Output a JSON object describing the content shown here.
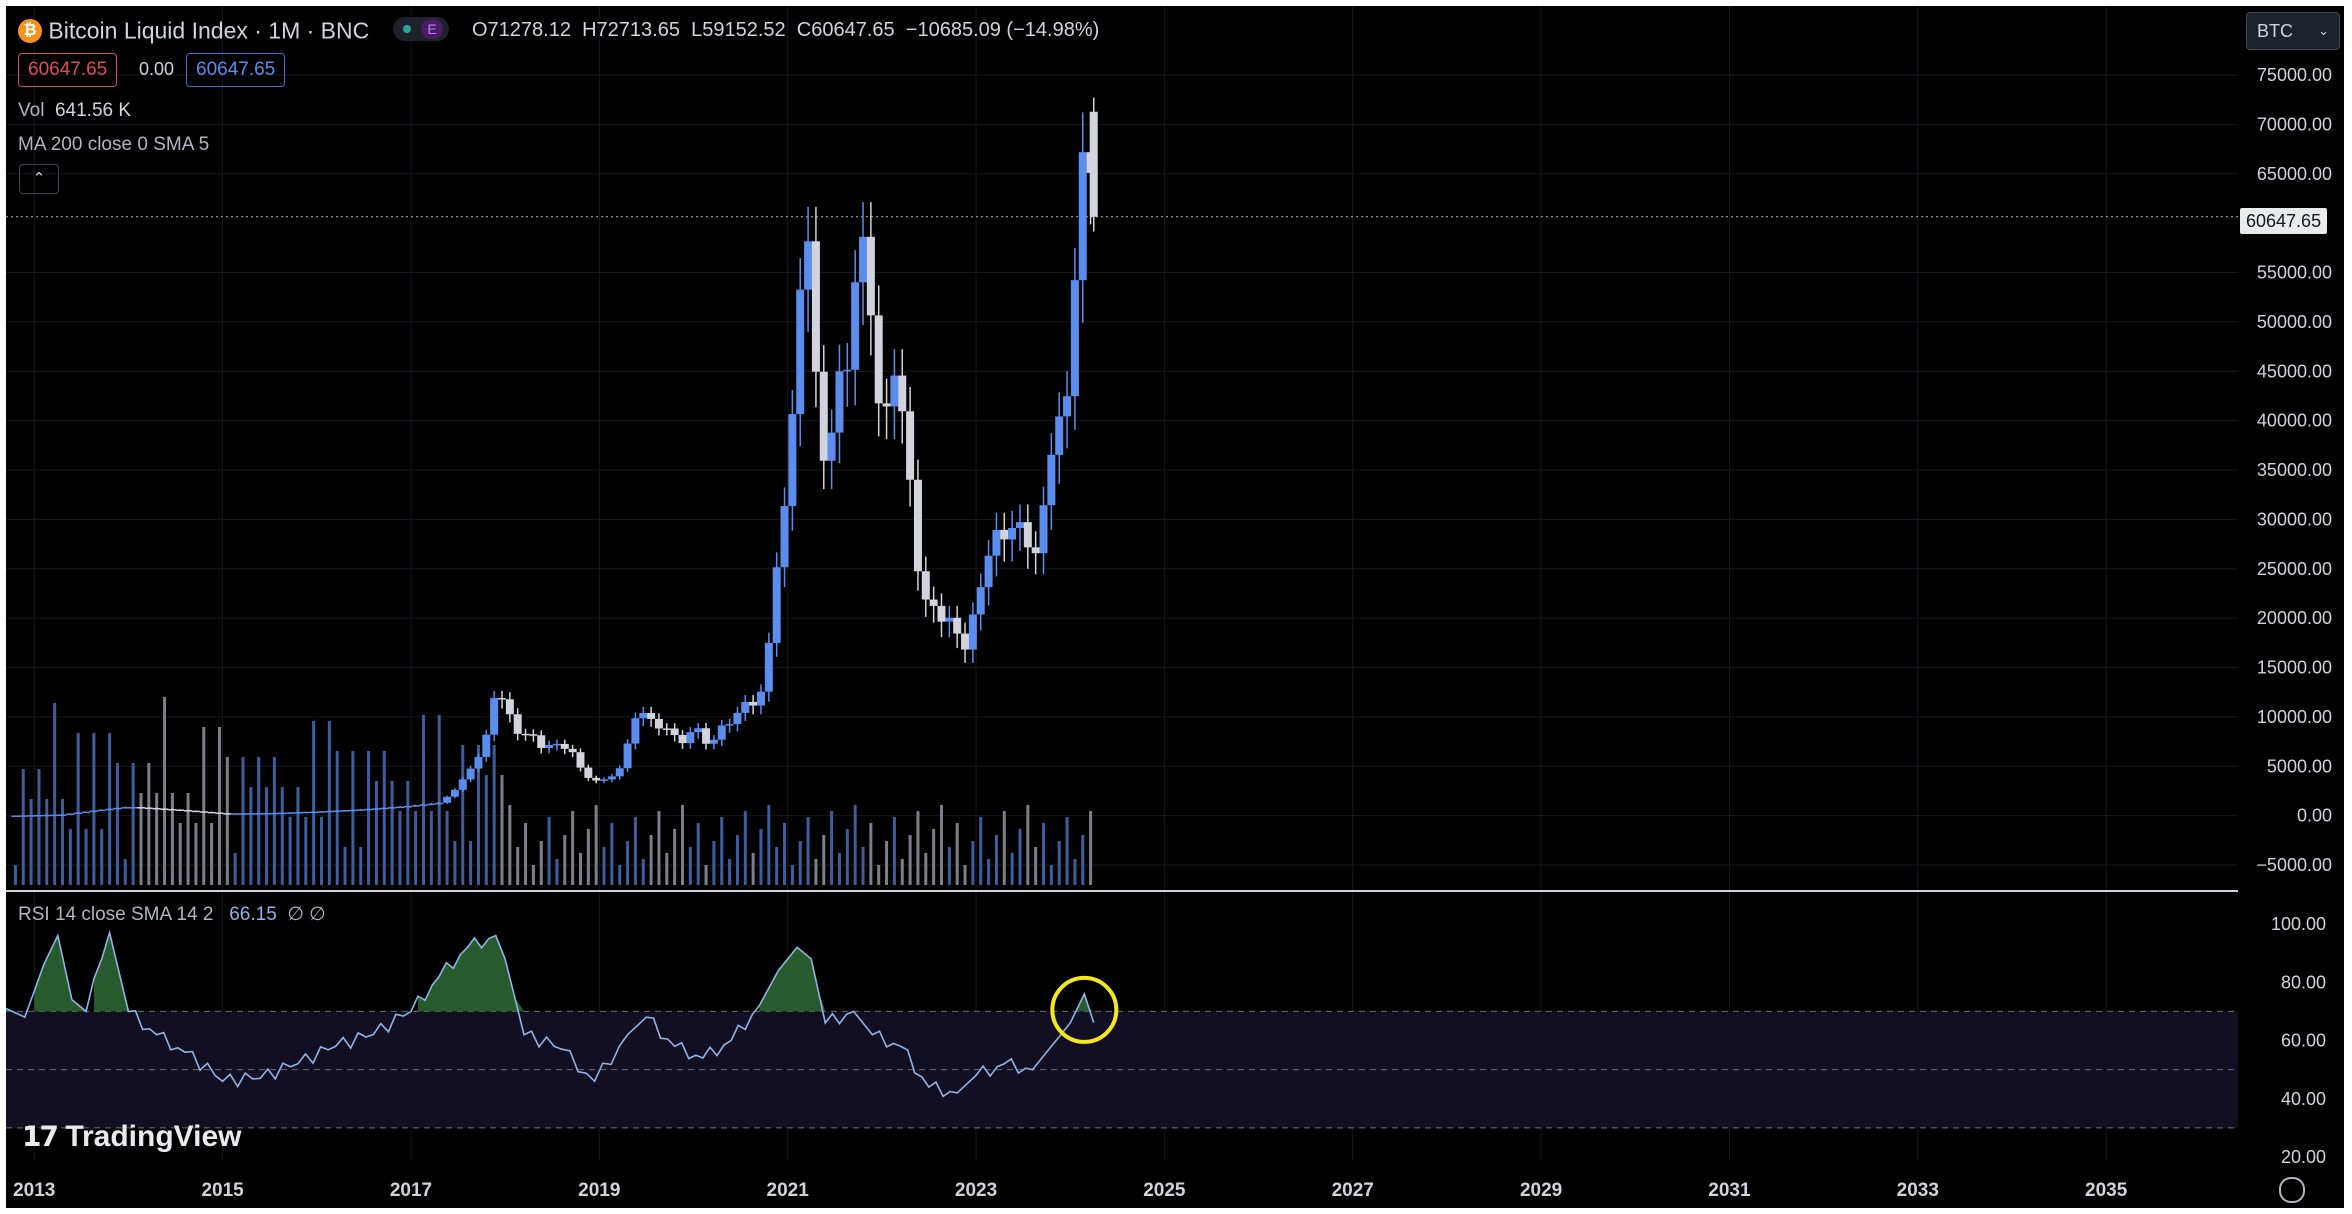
{
  "header": {
    "symbol_title": "Bitcoin Liquid Index · 1M · BNC",
    "badge_e": "E",
    "ohlc": {
      "open": "O71278.12",
      "high": "H72713.65",
      "low": "L59152.52",
      "close": "C60647.65",
      "change": "−10685.09 (−14.98%)"
    },
    "bid": "60647.65",
    "spread": "0.00",
    "ask": "60647.65",
    "vol_label": "Vol",
    "vol_value": "641.56 K",
    "ma_label": "MA 200 close 0 SMA 5",
    "rsi_label": "RSI 14 close SMA 14 2",
    "rsi_value": "66.15",
    "rsi_extra": "∅ ∅"
  },
  "currency_button": "BTC",
  "watermark": "TradingView",
  "last_price_label": "60647.65",
  "colors": {
    "background": "#000000",
    "up": "#5b8def",
    "down": "#d1d4dc",
    "rsi_line": "#8fb4e8",
    "overbought_fill": "#2e7d32",
    "highlight_circle": "#f5e71d",
    "bid_border": "#e04b55",
    "ask_border": "#3a6fd8"
  },
  "chart_data": [
    {
      "type": "candlestick",
      "title": "Bitcoin Liquid Index · 1M · BNC",
      "y_ticks": [
        "75000.00",
        "70000.00",
        "65000.00",
        "55000.00",
        "50000.00",
        "45000.00",
        "40000.00",
        "35000.00",
        "30000.00",
        "25000.00",
        "20000.00",
        "15000.00",
        "10000.00",
        "5000.00",
        "0.00",
        "−5000.00"
      ],
      "ylim": [
        -5000,
        75000
      ],
      "x_ticks": [
        "2013",
        "2015",
        "2017",
        "2019",
        "2021",
        "2023",
        "2025",
        "2027",
        "2029",
        "2031",
        "2033",
        "2035"
      ],
      "xlim": [
        2012.7,
        2036.4
      ],
      "last_price": 60647.65,
      "series_major": [
        {
          "t": 2012.8,
          "c": 12
        },
        {
          "t": 2013.3,
          "c": 120
        },
        {
          "t": 2013.8,
          "c": 700
        },
        {
          "t": 2014.0,
          "c": 900
        },
        {
          "t": 2014.5,
          "c": 600
        },
        {
          "t": 2015.0,
          "c": 230
        },
        {
          "t": 2015.5,
          "c": 260
        },
        {
          "t": 2016.0,
          "c": 420
        },
        {
          "t": 2016.5,
          "c": 650
        },
        {
          "t": 2017.0,
          "c": 1000
        },
        {
          "t": 2017.3,
          "c": 1300
        },
        {
          "t": 2017.45,
          "c": 2400
        },
        {
          "t": 2017.6,
          "c": 4300
        },
        {
          "t": 2017.75,
          "c": 6400
        },
        {
          "t": 2017.85,
          "c": 10000
        },
        {
          "t": 2017.92,
          "c": 14000
        },
        {
          "t": 2018.0,
          "c": 10200
        },
        {
          "t": 2018.08,
          "c": 10300
        },
        {
          "t": 2018.17,
          "c": 6900
        },
        {
          "t": 2018.25,
          "c": 9200
        },
        {
          "t": 2018.33,
          "c": 7500
        },
        {
          "t": 2018.42,
          "c": 6400
        },
        {
          "t": 2018.5,
          "c": 7700
        },
        {
          "t": 2018.58,
          "c": 7000
        },
        {
          "t": 2018.67,
          "c": 6600
        },
        {
          "t": 2018.75,
          "c": 6300
        },
        {
          "t": 2018.83,
          "c": 4000
        },
        {
          "t": 2018.92,
          "c": 3700
        },
        {
          "t": 2019.0,
          "c": 3450
        },
        {
          "t": 2019.08,
          "c": 3800
        },
        {
          "t": 2019.17,
          "c": 4100
        },
        {
          "t": 2019.25,
          "c": 5300
        },
        {
          "t": 2019.33,
          "c": 8500
        },
        {
          "t": 2019.42,
          "c": 10800
        },
        {
          "t": 2019.5,
          "c": 10100
        },
        {
          "t": 2019.58,
          "c": 9600
        },
        {
          "t": 2019.67,
          "c": 8300
        },
        {
          "t": 2019.75,
          "c": 9200
        },
        {
          "t": 2019.83,
          "c": 7550
        },
        {
          "t": 2019.92,
          "c": 7200
        },
        {
          "t": 2020.0,
          "c": 9350
        },
        {
          "t": 2020.08,
          "c": 8550
        },
        {
          "t": 2020.17,
          "c": 6400
        },
        {
          "t": 2020.25,
          "c": 8600
        },
        {
          "t": 2020.33,
          "c": 9450
        },
        {
          "t": 2020.42,
          "c": 9150
        },
        {
          "t": 2020.5,
          "c": 11300
        },
        {
          "t": 2020.58,
          "c": 11650
        },
        {
          "t": 2020.67,
          "c": 10800
        },
        {
          "t": 2020.75,
          "c": 13800
        },
        {
          "t": 2020.83,
          "c": 19700
        },
        {
          "t": 2020.92,
          "c": 28900
        },
        {
          "t": 2021.0,
          "c": 33100
        },
        {
          "t": 2021.08,
          "c": 45200
        },
        {
          "t": 2021.17,
          "c": 58800
        },
        {
          "t": 2021.25,
          "c": 57700
        },
        {
          "t": 2021.33,
          "c": 37300
        },
        {
          "t": 2021.42,
          "c": 35000
        },
        {
          "t": 2021.5,
          "c": 41500
        },
        {
          "t": 2021.58,
          "c": 47100
        },
        {
          "t": 2021.67,
          "c": 43800
        },
        {
          "t": 2021.75,
          "c": 61300
        },
        {
          "t": 2021.83,
          "c": 57000
        },
        {
          "t": 2021.92,
          "c": 46300
        },
        {
          "t": 2022.0,
          "c": 38500
        },
        {
          "t": 2022.08,
          "c": 43200
        },
        {
          "t": 2022.17,
          "c": 45500
        },
        {
          "t": 2022.25,
          "c": 37700
        },
        {
          "t": 2022.33,
          "c": 31800
        },
        {
          "t": 2022.42,
          "c": 19900
        },
        {
          "t": 2022.5,
          "c": 23300
        },
        {
          "t": 2022.58,
          "c": 20000
        },
        {
          "t": 2022.67,
          "c": 19400
        },
        {
          "t": 2022.75,
          "c": 20500
        },
        {
          "t": 2022.83,
          "c": 17200
        },
        {
          "t": 2022.92,
          "c": 16550
        },
        {
          "t": 2023.0,
          "c": 23100
        },
        {
          "t": 2023.08,
          "c": 23150
        },
        {
          "t": 2023.17,
          "c": 28500
        },
        {
          "t": 2023.25,
          "c": 29250
        },
        {
          "t": 2023.33,
          "c": 27200
        },
        {
          "t": 2023.42,
          "c": 30450
        },
        {
          "t": 2023.5,
          "c": 29200
        },
        {
          "t": 2023.58,
          "c": 25950
        },
        {
          "t": 2023.67,
          "c": 27000
        },
        {
          "t": 2023.75,
          "c": 34600
        },
        {
          "t": 2023.83,
          "c": 37700
        },
        {
          "t": 2023.92,
          "c": 42300
        },
        {
          "t": 2024.0,
          "c": 42600
        },
        {
          "t": 2024.08,
          "c": 61200
        },
        {
          "t": 2024.17,
          "c": 71300
        },
        {
          "t": 2024.25,
          "c": 60648
        }
      ],
      "volume": "monthly volume bars (Vol 641.56 K last)"
    },
    {
      "type": "line",
      "title": "RSI 14 close SMA 14 2",
      "y_ticks": [
        "100.00",
        "80.00",
        "60.00",
        "40.00",
        "20.00"
      ],
      "ylim": [
        20,
        100
      ],
      "bands": [
        70,
        50,
        30
      ],
      "last_value": 66.15,
      "points": [
        {
          "t": 2012.7,
          "v": 71
        },
        {
          "t": 2012.9,
          "v": 68
        },
        {
          "t": 2013.1,
          "v": 86
        },
        {
          "t": 2013.25,
          "v": 96
        },
        {
          "t": 2013.4,
          "v": 74
        },
        {
          "t": 2013.55,
          "v": 70
        },
        {
          "t": 2013.8,
          "v": 97
        },
        {
          "t": 2014.0,
          "v": 70
        },
        {
          "t": 2014.3,
          "v": 62
        },
        {
          "t": 2014.6,
          "v": 56
        },
        {
          "t": 2015.0,
          "v": 46
        },
        {
          "t": 2015.4,
          "v": 47
        },
        {
          "t": 2015.8,
          "v": 52
        },
        {
          "t": 2016.2,
          "v": 58
        },
        {
          "t": 2016.6,
          "v": 62
        },
        {
          "t": 2017.0,
          "v": 70
        },
        {
          "t": 2017.3,
          "v": 82
        },
        {
          "t": 2017.6,
          "v": 92
        },
        {
          "t": 2017.9,
          "v": 96
        },
        {
          "t": 2018.0,
          "v": 88
        },
        {
          "t": 2018.2,
          "v": 62
        },
        {
          "t": 2018.6,
          "v": 57
        },
        {
          "t": 2018.95,
          "v": 46
        },
        {
          "t": 2019.3,
          "v": 62
        },
        {
          "t": 2019.5,
          "v": 68
        },
        {
          "t": 2019.8,
          "v": 58
        },
        {
          "t": 2020.1,
          "v": 54
        },
        {
          "t": 2020.4,
          "v": 60
        },
        {
          "t": 2020.7,
          "v": 72
        },
        {
          "t": 2020.9,
          "v": 84
        },
        {
          "t": 2021.1,
          "v": 92
        },
        {
          "t": 2021.25,
          "v": 88
        },
        {
          "t": 2021.4,
          "v": 66
        },
        {
          "t": 2021.7,
          "v": 70
        },
        {
          "t": 2021.9,
          "v": 62
        },
        {
          "t": 2022.2,
          "v": 58
        },
        {
          "t": 2022.5,
          "v": 44
        },
        {
          "t": 2022.8,
          "v": 42
        },
        {
          "t": 2023.0,
          "v": 48
        },
        {
          "t": 2023.3,
          "v": 52
        },
        {
          "t": 2023.6,
          "v": 50
        },
        {
          "t": 2023.8,
          "v": 58
        },
        {
          "t": 2024.0,
          "v": 66
        },
        {
          "t": 2024.15,
          "v": 76
        },
        {
          "t": 2024.25,
          "v": 66.15
        }
      ]
    }
  ]
}
